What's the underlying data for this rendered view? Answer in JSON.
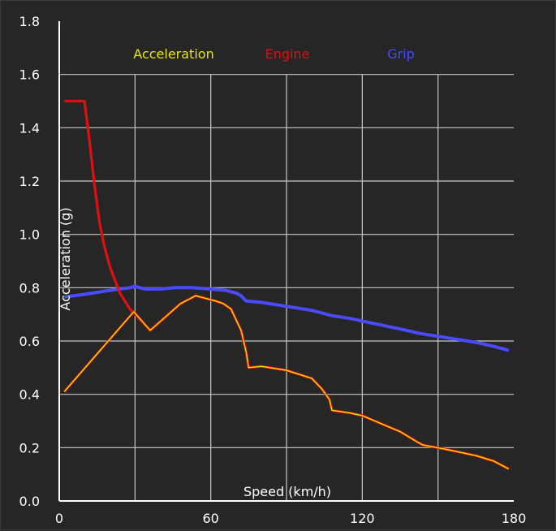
{
  "chart_data": {
    "type": "line",
    "title": "",
    "xlabel": "Speed (km/h)",
    "ylabel": "Acceleration (g)",
    "xlim": [
      0,
      180
    ],
    "ylim": [
      0,
      1.8
    ],
    "x_ticks": [
      0,
      60,
      120,
      180
    ],
    "y_ticks": [
      "0.0",
      "0.2",
      "0.4",
      "0.6",
      "0.8",
      "1.0",
      "1.2",
      "1.4",
      "1.6",
      "1.8"
    ],
    "grid": true,
    "legend_position": "top",
    "series": [
      {
        "name": "Acceleration",
        "color": "#e8e800",
        "x": [
          2,
          29.5,
          36,
          42,
          48,
          54,
          58,
          62,
          65,
          68,
          72,
          74,
          75,
          80,
          90,
          100,
          104,
          107,
          108,
          115,
          120,
          125,
          130,
          135,
          142,
          144,
          155,
          165,
          172,
          178
        ],
        "y": [
          0.41,
          0.71,
          0.64,
          0.69,
          0.74,
          0.77,
          0.76,
          0.75,
          0.74,
          0.72,
          0.64,
          0.56,
          0.5,
          0.505,
          0.49,
          0.46,
          0.42,
          0.38,
          0.34,
          0.33,
          0.32,
          0.3,
          0.28,
          0.26,
          0.22,
          0.21,
          0.19,
          0.17,
          0.15,
          0.12
        ]
      },
      {
        "name": "Engine",
        "color": "#e01010",
        "x": [
          2,
          10,
          12,
          14,
          16,
          18,
          20,
          22,
          24,
          26,
          28,
          30,
          32,
          36,
          42,
          48,
          54,
          58,
          62,
          65,
          68,
          72,
          74,
          75,
          80,
          90,
          100,
          104,
          107,
          108,
          115,
          120,
          125,
          130,
          135,
          142,
          144,
          155,
          165,
          172,
          178
        ],
        "y": [
          1.5,
          1.5,
          1.35,
          1.18,
          1.04,
          0.95,
          0.88,
          0.83,
          0.78,
          0.75,
          0.72,
          0.7,
          0.68,
          0.64,
          0.69,
          0.74,
          0.77,
          0.76,
          0.75,
          0.74,
          0.72,
          0.64,
          0.56,
          0.5,
          0.505,
          0.49,
          0.46,
          0.42,
          0.38,
          0.34,
          0.33,
          0.32,
          0.3,
          0.28,
          0.26,
          0.22,
          0.21,
          0.19,
          0.17,
          0.15,
          0.12
        ]
      },
      {
        "name": "Grip",
        "color": "#4a4aff",
        "x": [
          2,
          10,
          20,
          28,
          30,
          34,
          40,
          46,
          52,
          60,
          66,
          70,
          72,
          74,
          80,
          90,
          100,
          104,
          108,
          115,
          125,
          135,
          142,
          145,
          155,
          165,
          172,
          178
        ],
        "y": [
          0.765,
          0.775,
          0.79,
          0.8,
          0.805,
          0.795,
          0.795,
          0.8,
          0.8,
          0.795,
          0.79,
          0.78,
          0.77,
          0.75,
          0.745,
          0.73,
          0.715,
          0.705,
          0.695,
          0.685,
          0.665,
          0.645,
          0.63,
          0.625,
          0.61,
          0.595,
          0.58,
          0.565
        ]
      }
    ]
  }
}
